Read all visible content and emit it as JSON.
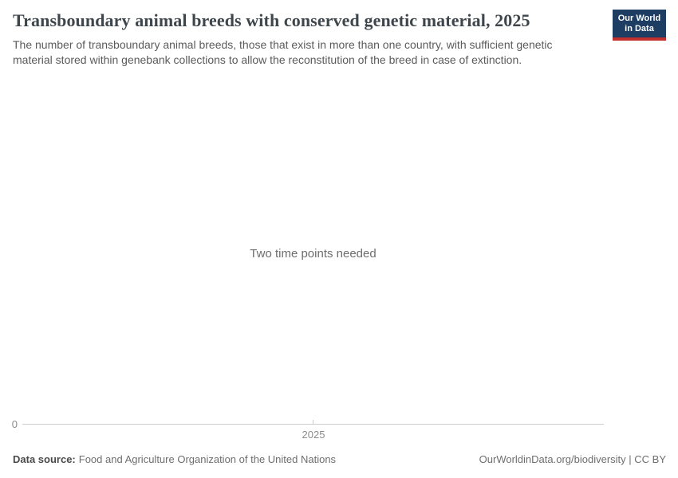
{
  "header": {
    "title": "Transboundary animal breeds with conserved genetic material, 2025",
    "subtitle": "The number of transboundary animal breeds, those that exist in more than one country, with sufficient genetic material stored within genebank collections to allow the reconstitution of the breed in case of extinction.",
    "logo": {
      "line1": "Our World",
      "line2": "in Data",
      "background_color": "#1d3d63",
      "stripe_color": "#c2302d"
    }
  },
  "plot": {
    "message": "Two time points needed",
    "axis": {
      "y_zero_label": "0",
      "x_tick_label": "2025"
    }
  },
  "chart_data": {
    "type": "line",
    "title": "Transboundary animal breeds with conserved genetic material, 2025",
    "x": [
      2025
    ],
    "series": [],
    "x_tick_labels": [
      "2025"
    ],
    "y_tick_labels": [
      "0"
    ],
    "xlabel": "",
    "ylabel": "",
    "grid": false,
    "legend": "none",
    "empty_state_message": "Two time points needed",
    "note": "No data series plotted; chart requires two time points"
  },
  "footer": {
    "source_label": "Data source:",
    "source_value": "Food and Agriculture Organization of the United Nations",
    "rights": "OurWorldinData.org/biodiversity | CC BY"
  },
  "colors": {
    "title_text": "#3e464c",
    "subtitle_text": "#5b5b5b",
    "message_text": "#6d6d6d",
    "axis_line": "#cfcfcf",
    "tick_label": "#8c8c8c",
    "footer_text": "#6e6e6e"
  }
}
